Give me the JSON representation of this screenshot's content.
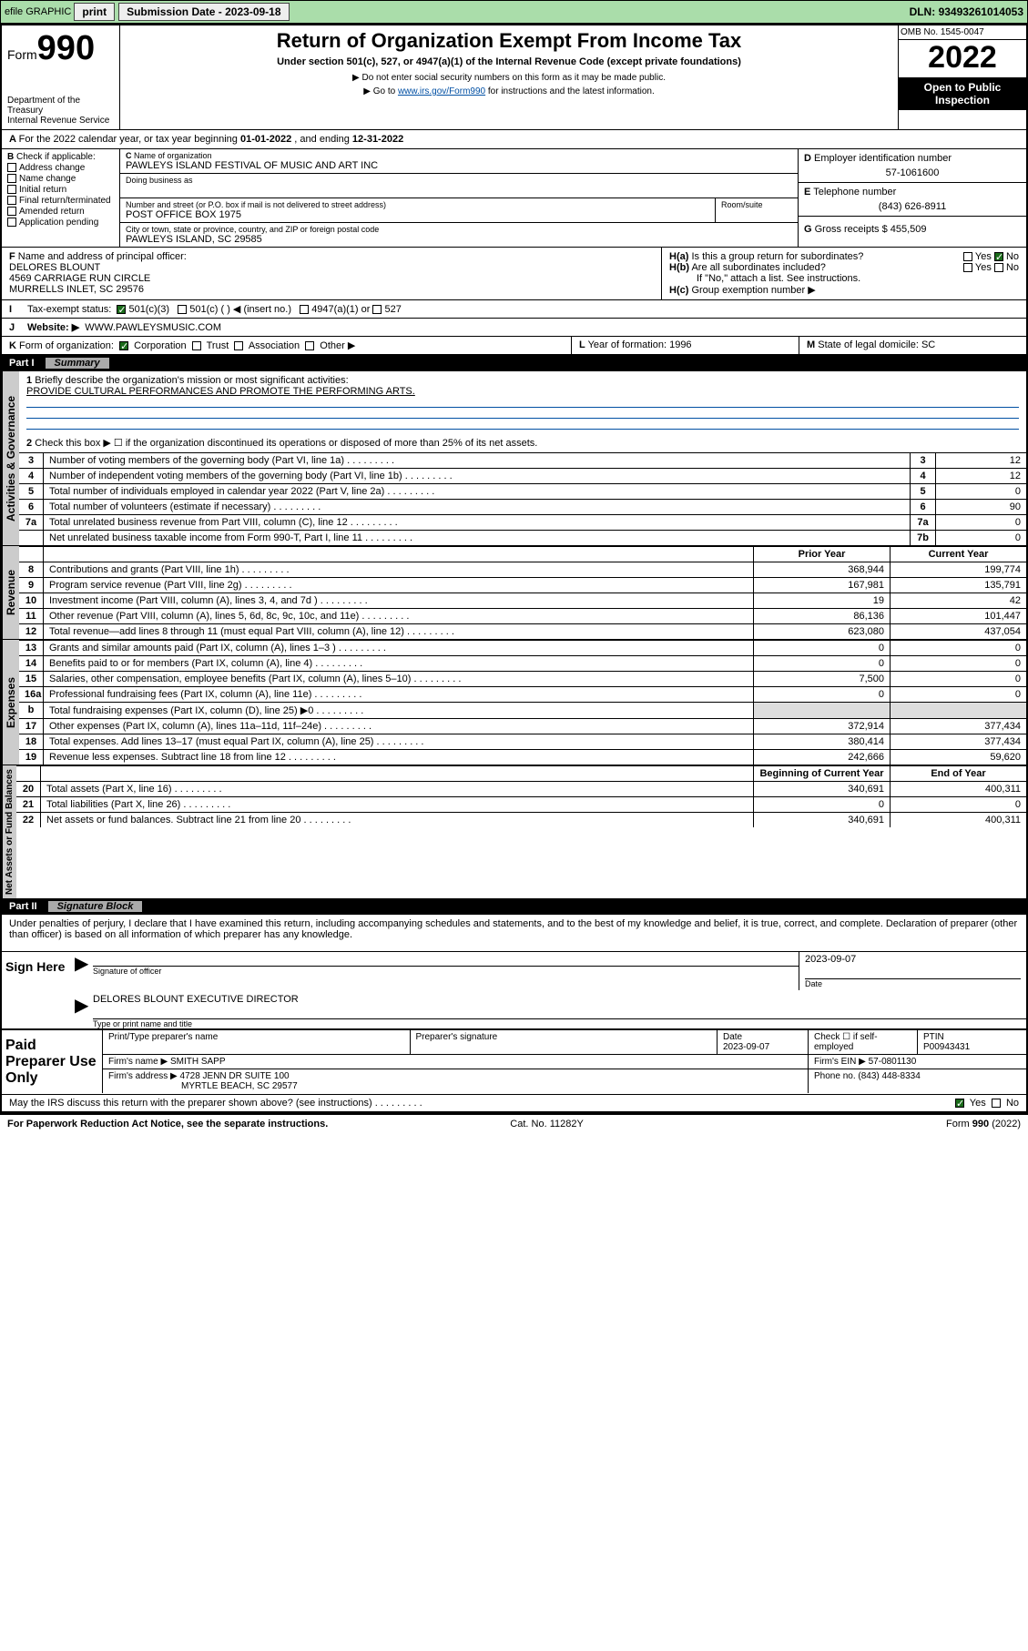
{
  "topbar": {
    "efile": "efile GRAPHIC",
    "print": "print",
    "sub_lbl": "Submission Date - ",
    "sub_date": "2023-09-18",
    "dln_lbl": "DLN: ",
    "dln": "93493261014053"
  },
  "header": {
    "form_prefix": "Form",
    "form_no": "990",
    "dept": "Department of the Treasury",
    "irs": "Internal Revenue Service",
    "title": "Return of Organization Exempt From Income Tax",
    "subtitle": "Under section 501(c), 527, or 4947(a)(1) of the Internal Revenue Code (except private foundations)",
    "note1": "▶ Do not enter social security numbers on this form as it may be made public.",
    "note2_pre": "▶ Go to ",
    "note2_link": "www.irs.gov/Form990",
    "note2_post": " for instructions and the latest information.",
    "omb": "OMB No. 1545-0047",
    "year": "2022",
    "open": "Open to Public Inspection"
  },
  "lineA": {
    "text_pre": "For the 2022 calendar year, or tax year beginning ",
    "begin": "01-01-2022",
    "mid": " , and ending ",
    "end": "12-31-2022"
  },
  "blockB": {
    "b_label": "Check if applicable:",
    "opts": [
      "Address change",
      "Name change",
      "Initial return",
      "Final return/terminated",
      "Amended return",
      "Application pending"
    ],
    "c_name_lbl": "Name of organization",
    "c_name": "PAWLEYS ISLAND FESTIVAL OF MUSIC AND ART INC",
    "dba_lbl": "Doing business as",
    "addr_lbl": "Number and street (or P.O. box if mail is not delivered to street address)",
    "room_lbl": "Room/suite",
    "addr": "POST OFFICE BOX 1975",
    "city_lbl": "City or town, state or province, country, and ZIP or foreign postal code",
    "city": "PAWLEYS ISLAND, SC  29585",
    "d_lbl": "Employer identification number",
    "d_val": "57-1061600",
    "e_lbl": "Telephone number",
    "e_val": "(843) 626-8911",
    "g_lbl": "Gross receipts $ ",
    "g_val": "455,509"
  },
  "blockFH": {
    "f_lbl": "Name and address of principal officer:",
    "f_name": "DELORES BLOUNT",
    "f_addr1": "4569 CARRIAGE RUN CIRCLE",
    "f_addr2": "MURRELLS INLET, SC  29576",
    "ha": "Is this a group return for subordinates?",
    "hb": "Are all subordinates included?",
    "hb_note": "If \"No,\" attach a list. See instructions.",
    "hc": "Group exemption number ▶",
    "yes": "Yes",
    "no": "No"
  },
  "lineI": {
    "lbl": "Tax-exempt status:",
    "o1": "501(c)(3)",
    "o2": "501(c) (   ) ◀ (insert no.)",
    "o3": "4947(a)(1) or",
    "o4": "527"
  },
  "lineJ": {
    "lbl": "Website: ▶",
    "val": "WWW.PAWLEYSMUSIC.COM"
  },
  "lineK": {
    "lbl": "Form of organization:",
    "opts": [
      "Corporation",
      "Trust",
      "Association",
      "Other ▶"
    ],
    "l_lbl": "Year of formation: ",
    "l_val": "1996",
    "m_lbl": "State of legal domicile: ",
    "m_val": "SC"
  },
  "part1": {
    "label": "Part I",
    "title": "Summary",
    "q1": "Briefly describe the organization's mission or most significant activities:",
    "q1_val": "PROVIDE CULTURAL PERFORMANCES AND PROMOTE THE PERFORMING ARTS.",
    "q2": "Check this box ▶ ☐  if the organization discontinued its operations or disposed of more than 25% of its net assets.",
    "rows_gov": [
      {
        "n": "3",
        "t": "Number of voting members of the governing body (Part VI, line 1a)",
        "box": "3",
        "v": "12"
      },
      {
        "n": "4",
        "t": "Number of independent voting members of the governing body (Part VI, line 1b)",
        "box": "4",
        "v": "12"
      },
      {
        "n": "5",
        "t": "Total number of individuals employed in calendar year 2022 (Part V, line 2a)",
        "box": "5",
        "v": "0"
      },
      {
        "n": "6",
        "t": "Total number of volunteers (estimate if necessary)",
        "box": "6",
        "v": "90"
      },
      {
        "n": "7a",
        "t": "Total unrelated business revenue from Part VIII, column (C), line 12",
        "box": "7a",
        "v": "0"
      },
      {
        "n": "",
        "t": "Net unrelated business taxable income from Form 990-T, Part I, line 11",
        "box": "7b",
        "v": "0"
      }
    ],
    "col_prior": "Prior Year",
    "col_current": "Current Year",
    "rev": [
      {
        "n": "8",
        "t": "Contributions and grants (Part VIII, line 1h)",
        "p": "368,944",
        "c": "199,774"
      },
      {
        "n": "9",
        "t": "Program service revenue (Part VIII, line 2g)",
        "p": "167,981",
        "c": "135,791"
      },
      {
        "n": "10",
        "t": "Investment income (Part VIII, column (A), lines 3, 4, and 7d )",
        "p": "19",
        "c": "42"
      },
      {
        "n": "11",
        "t": "Other revenue (Part VIII, column (A), lines 5, 6d, 8c, 9c, 10c, and 11e)",
        "p": "86,136",
        "c": "101,447"
      },
      {
        "n": "12",
        "t": "Total revenue—add lines 8 through 11 (must equal Part VIII, column (A), line 12)",
        "p": "623,080",
        "c": "437,054"
      }
    ],
    "exp": [
      {
        "n": "13",
        "t": "Grants and similar amounts paid (Part IX, column (A), lines 1–3 )",
        "p": "0",
        "c": "0"
      },
      {
        "n": "14",
        "t": "Benefits paid to or for members (Part IX, column (A), line 4)",
        "p": "0",
        "c": "0"
      },
      {
        "n": "15",
        "t": "Salaries, other compensation, employee benefits (Part IX, column (A), lines 5–10)",
        "p": "7,500",
        "c": "0"
      },
      {
        "n": "16a",
        "t": "Professional fundraising fees (Part IX, column (A), line 11e)",
        "p": "0",
        "c": "0"
      },
      {
        "n": "b",
        "t": "Total fundraising expenses (Part IX, column (D), line 25) ▶0",
        "p": "",
        "c": "",
        "grey": true
      },
      {
        "n": "17",
        "t": "Other expenses (Part IX, column (A), lines 11a–11d, 11f–24e)",
        "p": "372,914",
        "c": "377,434"
      },
      {
        "n": "18",
        "t": "Total expenses. Add lines 13–17 (must equal Part IX, column (A), line 25)",
        "p": "380,414",
        "c": "377,434"
      },
      {
        "n": "19",
        "t": "Revenue less expenses. Subtract line 18 from line 12",
        "p": "242,666",
        "c": "59,620"
      }
    ],
    "col_begin": "Beginning of Current Year",
    "col_end": "End of Year",
    "net": [
      {
        "n": "20",
        "t": "Total assets (Part X, line 16)",
        "p": "340,691",
        "c": "400,311"
      },
      {
        "n": "21",
        "t": "Total liabilities (Part X, line 26)",
        "p": "0",
        "c": "0"
      },
      {
        "n": "22",
        "t": "Net assets or fund balances. Subtract line 21 from line 20",
        "p": "340,691",
        "c": "400,311"
      }
    ],
    "side_gov": "Activities & Governance",
    "side_rev": "Revenue",
    "side_exp": "Expenses",
    "side_net": "Net Assets or Fund Balances"
  },
  "part2": {
    "label": "Part II",
    "title": "Signature Block",
    "decl": "Under penalties of perjury, I declare that I have examined this return, including accompanying schedules and statements, and to the best of my knowledge and belief, it is true, correct, and complete. Declaration of preparer (other than officer) is based on all information of which preparer has any knowledge.",
    "sign_here": "Sign Here",
    "sig_officer": "Signature of officer",
    "date_lbl": "Date",
    "date_val": "2023-09-07",
    "name_title": "DELORES BLOUNT  EXECUTIVE DIRECTOR",
    "name_title_lbl": "Type or print name and title",
    "paid": "Paid Preparer Use Only",
    "prep_name_lbl": "Print/Type preparer's name",
    "prep_sig_lbl": "Preparer's signature",
    "prep_date_lbl": "Date",
    "prep_date": "2023-09-07",
    "check_self": "Check ☐ if self-employed",
    "ptin_lbl": "PTIN",
    "ptin": "P00943431",
    "firm_name_lbl": "Firm's name    ▶",
    "firm_name": "SMITH SAPP",
    "firm_ein_lbl": "Firm's EIN ▶",
    "firm_ein": "57-0801130",
    "firm_addr_lbl": "Firm's address ▶",
    "firm_addr1": "4728 JENN DR SUITE 100",
    "firm_addr2": "MYRTLE BEACH, SC  29577",
    "phone_lbl": "Phone no. ",
    "phone": "(843) 448-8334",
    "discuss": "May the IRS discuss this return with the preparer shown above? (see instructions)"
  },
  "footer": {
    "pra": "For Paperwork Reduction Act Notice, see the separate instructions.",
    "cat": "Cat. No. 11282Y",
    "form": "Form 990 (2022)"
  },
  "colors": {
    "topbar_bg": "#aaddaa",
    "link": "#004fa3",
    "black": "#000000",
    "grey_side": "#cccccc",
    "grey_cell": "#dddddd"
  }
}
